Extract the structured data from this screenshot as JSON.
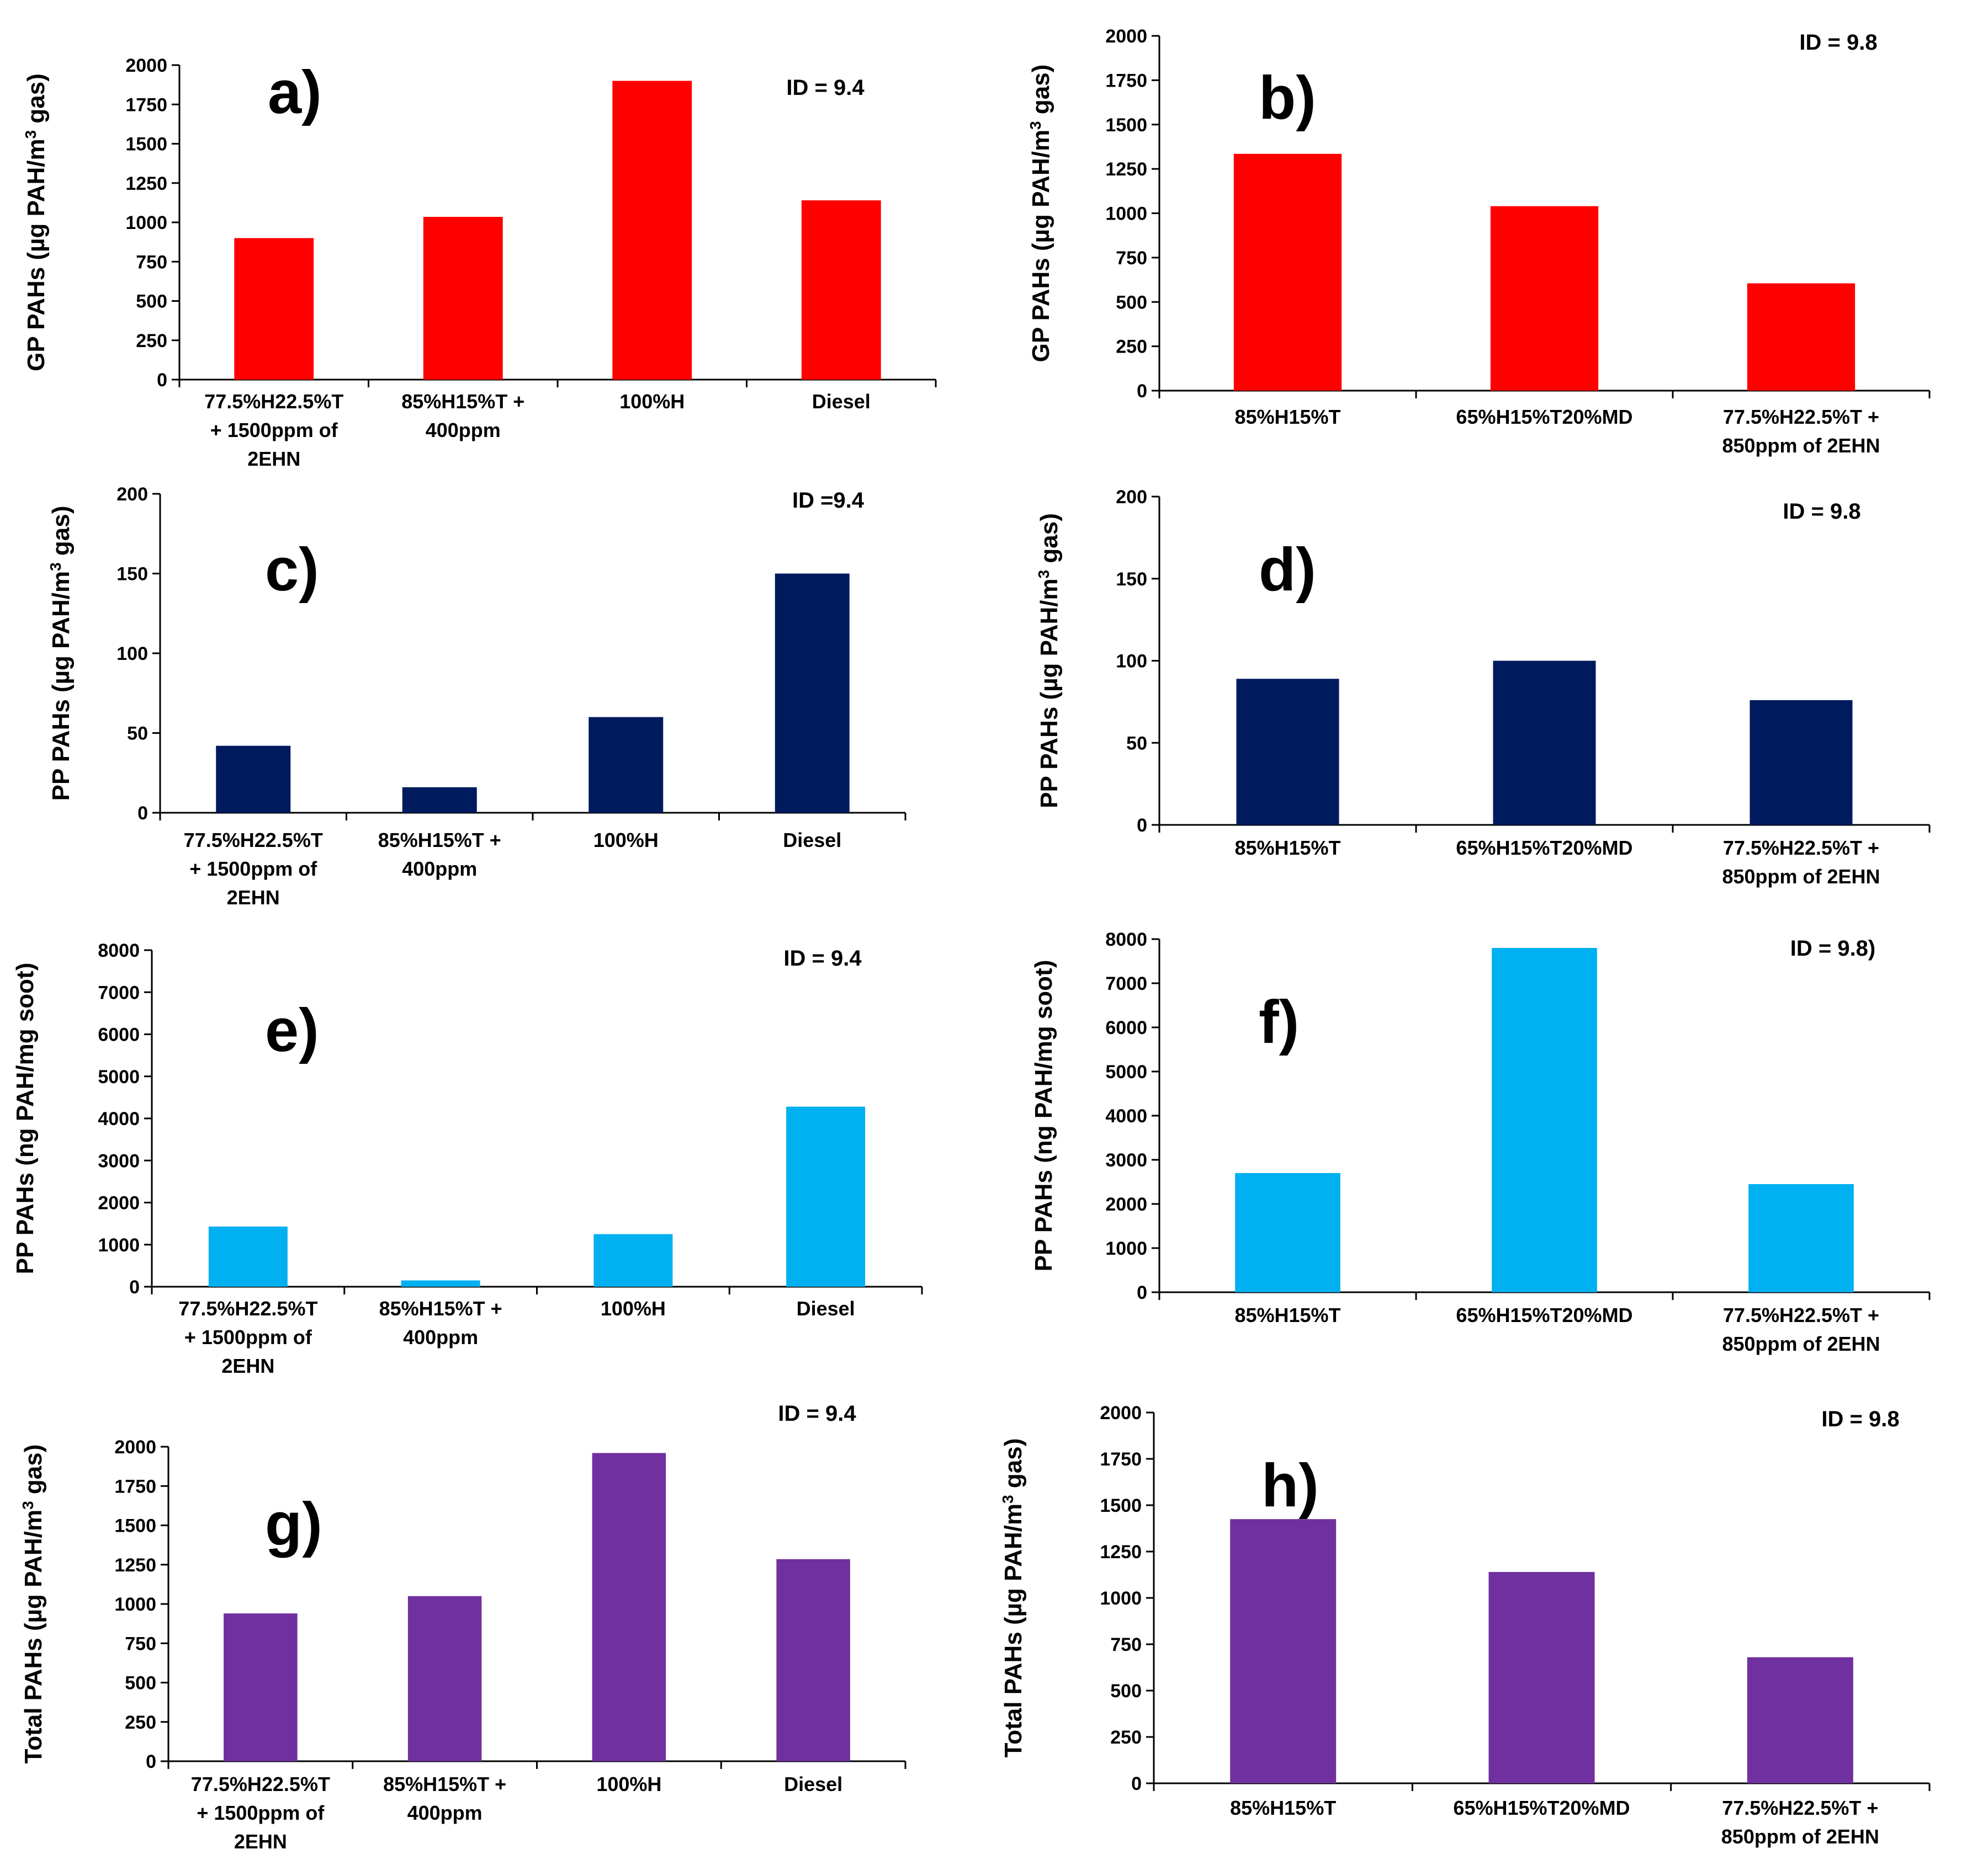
{
  "figure": {
    "chart_data": [
      {
        "panel": "a)",
        "type": "bar",
        "id_label": "ID = 9.4",
        "ylabel_pre": "GP  PAHs (µg PAH/m",
        "ylabel_sup": "3",
        "ylabel_post": " gas)",
        "ylim": [
          0,
          2000
        ],
        "ticks": [
          0,
          250,
          500,
          750,
          1000,
          1250,
          1500,
          1750,
          2000
        ],
        "color": "#ff0000",
        "categories": [
          [
            "77.5%H22.5%T",
            "+ 1500ppm of",
            "2EHN"
          ],
          [
            "85%H15%T +",
            "400ppm"
          ],
          [
            "100%H"
          ],
          [
            "Diesel"
          ]
        ],
        "values": [
          900,
          1035,
          1900,
          1140
        ]
      },
      {
        "panel": "b)",
        "type": "bar",
        "id_label": "ID = 9.8",
        "ylabel_pre": "GP  PAHs (µg PAH/m",
        "ylabel_sup": "3",
        "ylabel_post": " gas)",
        "ylim": [
          0,
          2000
        ],
        "ticks": [
          0,
          250,
          500,
          750,
          1000,
          1250,
          1500,
          1750,
          2000
        ],
        "color": "#ff0000",
        "categories": [
          [
            "85%H15%T"
          ],
          [
            "65%H15%T20%MD"
          ],
          [
            "77.5%H22.5%T +",
            "850ppm of 2EHN"
          ]
        ],
        "values": [
          1335,
          1040,
          605
        ]
      },
      {
        "panel": "c)",
        "type": "bar",
        "id_label": "ID =9.4",
        "ylabel_pre": "PP PAHs (µg PAH/m",
        "ylabel_sup": "3",
        "ylabel_post": " gas)",
        "ylim": [
          0,
          200
        ],
        "ticks": [
          0,
          50,
          100,
          150,
          200
        ],
        "color": "#001a5e",
        "categories": [
          [
            "77.5%H22.5%T",
            "+ 1500ppm of",
            "2EHN"
          ],
          [
            "85%H15%T +",
            "400ppm"
          ],
          [
            "100%H"
          ],
          [
            "Diesel"
          ]
        ],
        "values": [
          42,
          16,
          60,
          150
        ]
      },
      {
        "panel": "d)",
        "type": "bar",
        "id_label": "ID = 9.8",
        "ylabel_pre": "PP PAHs (µg PAH/m",
        "ylabel_sup": "3",
        "ylabel_post": " gas)",
        "ylim": [
          0,
          200
        ],
        "ticks": [
          0,
          50,
          100,
          150,
          200
        ],
        "color": "#001a5e",
        "categories": [
          [
            "85%H15%T"
          ],
          [
            "65%H15%T20%MD"
          ],
          [
            "77.5%H22.5%T +",
            "850ppm of 2EHN"
          ]
        ],
        "values": [
          89,
          100,
          76
        ]
      },
      {
        "panel": "e)",
        "type": "bar",
        "id_label": "ID = 9.4",
        "ylabel_pre": "PP PAHs (ng PAH/mg soot)",
        "ylabel_sup": "",
        "ylabel_post": "",
        "ylim": [
          0,
          8000
        ],
        "ticks": [
          0,
          1000,
          2000,
          3000,
          4000,
          5000,
          6000,
          7000,
          8000
        ],
        "color": "#00b0f0",
        "categories": [
          [
            "77.5%H22.5%T",
            "+ 1500ppm of",
            "2EHN"
          ],
          [
            "85%H15%T +",
            "400ppm"
          ],
          [
            "100%H"
          ],
          [
            "Diesel"
          ]
        ],
        "values": [
          1430,
          150,
          1250,
          4280
        ]
      },
      {
        "panel": "f)",
        "type": "bar",
        "id_label": "ID = 9.8)",
        "ylabel_pre": "PP PAHs (ng PAH/mg soot)",
        "ylabel_sup": "",
        "ylabel_post": "",
        "ylim": [
          0,
          8000
        ],
        "ticks": [
          0,
          1000,
          2000,
          3000,
          4000,
          5000,
          6000,
          7000,
          8000
        ],
        "color": "#00b0f0",
        "categories": [
          [
            "85%H15%T"
          ],
          [
            "65%H15%T20%MD"
          ],
          [
            "77.5%H22.5%T +",
            "850ppm of 2EHN"
          ]
        ],
        "values": [
          2700,
          7800,
          2450
        ]
      },
      {
        "panel": "g)",
        "type": "bar",
        "id_label": "ID  = 9.4",
        "ylabel_pre": "Total  PAHs (µg PAH/m",
        "ylabel_sup": "3",
        "ylabel_post": " gas)",
        "ylim": [
          0,
          2000
        ],
        "ticks": [
          0,
          250,
          500,
          750,
          1000,
          1250,
          1500,
          1750,
          2000
        ],
        "color": "#7030a0",
        "categories": [
          [
            "77.5%H22.5%T",
            "+ 1500ppm of",
            "2EHN"
          ],
          [
            "85%H15%T +",
            "400ppm"
          ],
          [
            "100%H"
          ],
          [
            "Diesel"
          ]
        ],
        "values": [
          940,
          1050,
          1960,
          1285
        ]
      },
      {
        "panel": "h)",
        "type": "bar",
        "id_label": "ID = 9.8",
        "ylabel_pre": "Total  PAHs (µg PAH/m",
        "ylabel_sup": "3",
        "ylabel_post": " gas)",
        "ylim": [
          0,
          2000
        ],
        "ticks": [
          0,
          250,
          500,
          750,
          1000,
          1250,
          1500,
          1750,
          2000
        ],
        "color": "#7030a0",
        "categories": [
          [
            "85%H15%T"
          ],
          [
            "65%H15%T20%MD"
          ],
          [
            "77.5%H22.5%T +",
            "850ppm of 2EHN"
          ]
        ],
        "values": [
          1425,
          1140,
          680
        ]
      }
    ]
  }
}
